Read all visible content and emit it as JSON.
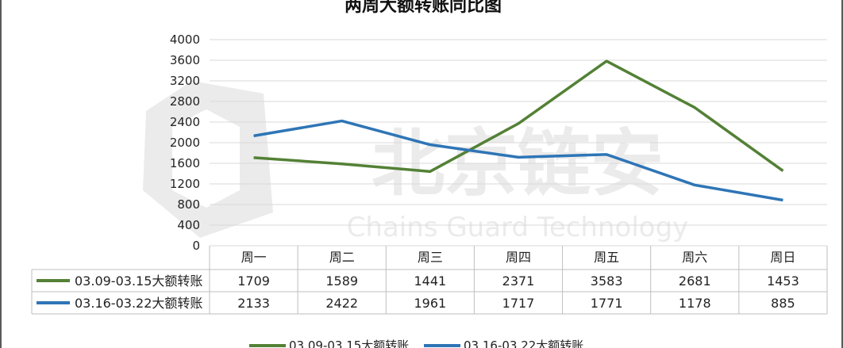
{
  "chart_data": {
    "type": "line",
    "title": "两周大额转账同比图",
    "categories": [
      "周一",
      "周二",
      "周三",
      "周四",
      "周五",
      "周六",
      "周日"
    ],
    "ylim": [
      0,
      4000
    ],
    "yticks": [
      0,
      400,
      800,
      1200,
      1600,
      2000,
      2400,
      2800,
      3200,
      3600,
      4000
    ],
    "grid": true,
    "legend_position": "bottom",
    "data_table": true,
    "series": [
      {
        "name": "03.09-03.15大额转账",
        "color": "#538135",
        "values": [
          1709,
          1589,
          1441,
          2371,
          3583,
          2681,
          1453
        ]
      },
      {
        "name": "03.16-03.22大额转账",
        "color": "#2e75b6",
        "values": [
          2133,
          2422,
          1961,
          1717,
          1771,
          1178,
          885
        ]
      }
    ]
  },
  "watermark": {
    "main": "北京链安",
    "sub": "Chains Guard Technology"
  }
}
